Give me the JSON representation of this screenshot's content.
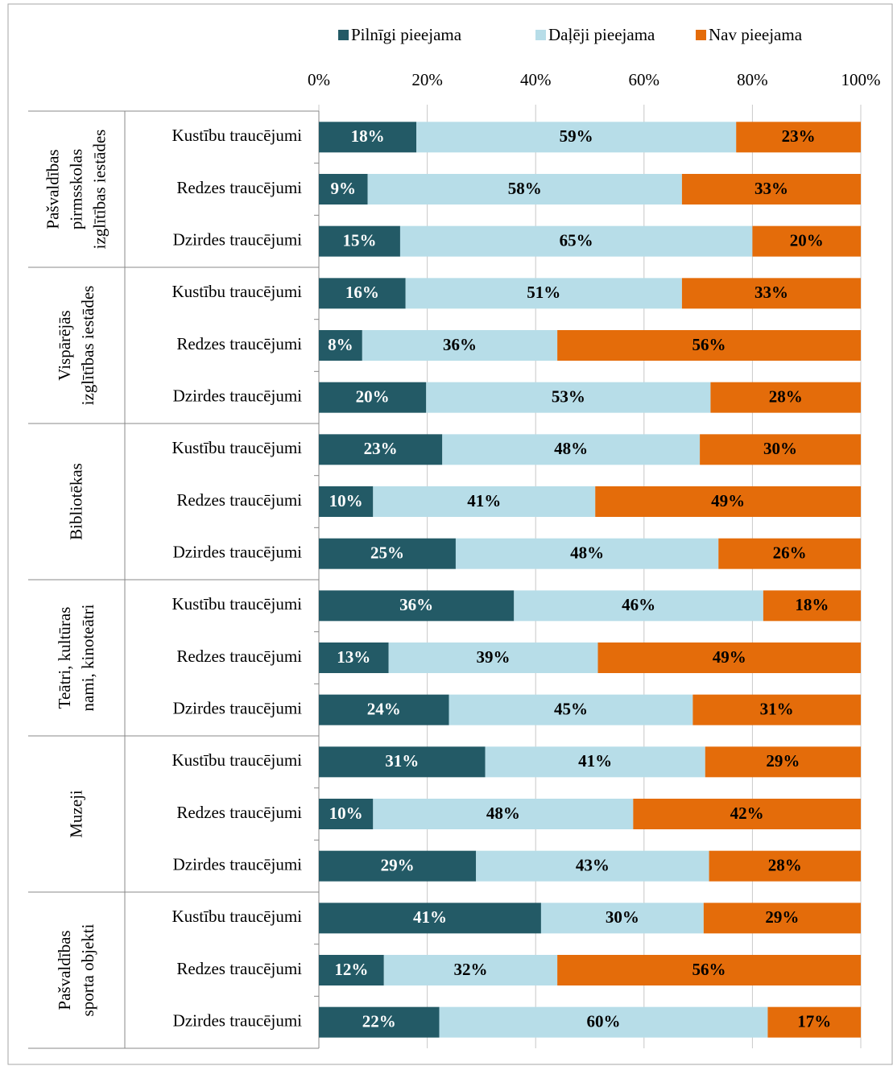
{
  "chart_data": {
    "type": "bar",
    "orientation": "horizontal",
    "stacked": "percent",
    "groups": [
      "Pašvaldības\npirmsskolas\nizglītības iestādes",
      "Vispārējās\nizglītības iestādes",
      "Bibliotēkas",
      "Teātri, kultūras\nnami, kinoteātri",
      "Muzeji",
      "Pašvaldības\nsporta objekti"
    ],
    "categories": [
      "Kustību traucējumi",
      "Redzes traucējumi",
      "Dzirdes traucējumi",
      "Kustību traucējumi",
      "Redzes traucējumi",
      "Dzirdes traucējumi",
      "Kustību traucējumi",
      "Redzes traucējumi",
      "Dzirdes traucējumi",
      "Kustību traucējumi",
      "Redzes traucējumi",
      "Dzirdes traucējumi",
      "Kustību traucējumi",
      "Redzes traucējumi",
      "Dzirdes traucējumi",
      "Kustību traucējumi",
      "Redzes traucējumi",
      "Dzirdes traucējumi"
    ],
    "series": [
      {
        "name": "Pilnīgi pieejama",
        "color": "#235a66",
        "label_color": "#ffffff",
        "values": [
          18,
          9,
          15,
          16,
          8,
          20,
          23,
          10,
          25,
          36,
          13,
          24,
          31,
          10,
          29,
          41,
          12,
          22
        ],
        "value_labels": [
          "18%",
          "9%",
          "15%",
          "16%",
          "8%",
          "20%",
          "23%",
          "10%",
          "25%",
          "36%",
          "13%",
          "24%",
          "31%",
          "10%",
          "29%",
          "41%",
          "12%",
          "22%"
        ]
      },
      {
        "name": "Daļēji pieejama",
        "color": "#b7dde8",
        "label_color": "#000000",
        "values": [
          59,
          58,
          65,
          51,
          36,
          53,
          48,
          41,
          48,
          46,
          39,
          45,
          41,
          48,
          43,
          30,
          32,
          60
        ],
        "value_labels": [
          "59%",
          "58%",
          "65%",
          "51%",
          "36%",
          "53%",
          "48%",
          "41%",
          "48%",
          "46%",
          "39%",
          "45%",
          "41%",
          "48%",
          "43%",
          "30%",
          "32%",
          "60%"
        ]
      },
      {
        "name": "Nav pieejama",
        "color": "#e46c0a",
        "label_color": "#000000",
        "values": [
          23,
          33,
          20,
          33,
          56,
          28,
          30,
          49,
          26,
          18,
          49,
          31,
          29,
          42,
          28,
          29,
          56,
          17
        ],
        "value_labels": [
          "23%",
          "33%",
          "20%",
          "33%",
          "56%",
          "28%",
          "30%",
          "49%",
          "26%",
          "18%",
          "49%",
          "31%",
          "29%",
          "42%",
          "28%",
          "29%",
          "56%",
          "17%"
        ]
      }
    ],
    "xlim": [
      0,
      100
    ],
    "xticks": [
      {
        "value": 0,
        "label": "0%"
      },
      {
        "value": 20,
        "label": "20%"
      },
      {
        "value": 40,
        "label": "40%"
      },
      {
        "value": 60,
        "label": "60%"
      },
      {
        "value": 80,
        "label": "80%"
      },
      {
        "value": 100,
        "label": "100%"
      }
    ],
    "grid": true,
    "legend": "top"
  }
}
